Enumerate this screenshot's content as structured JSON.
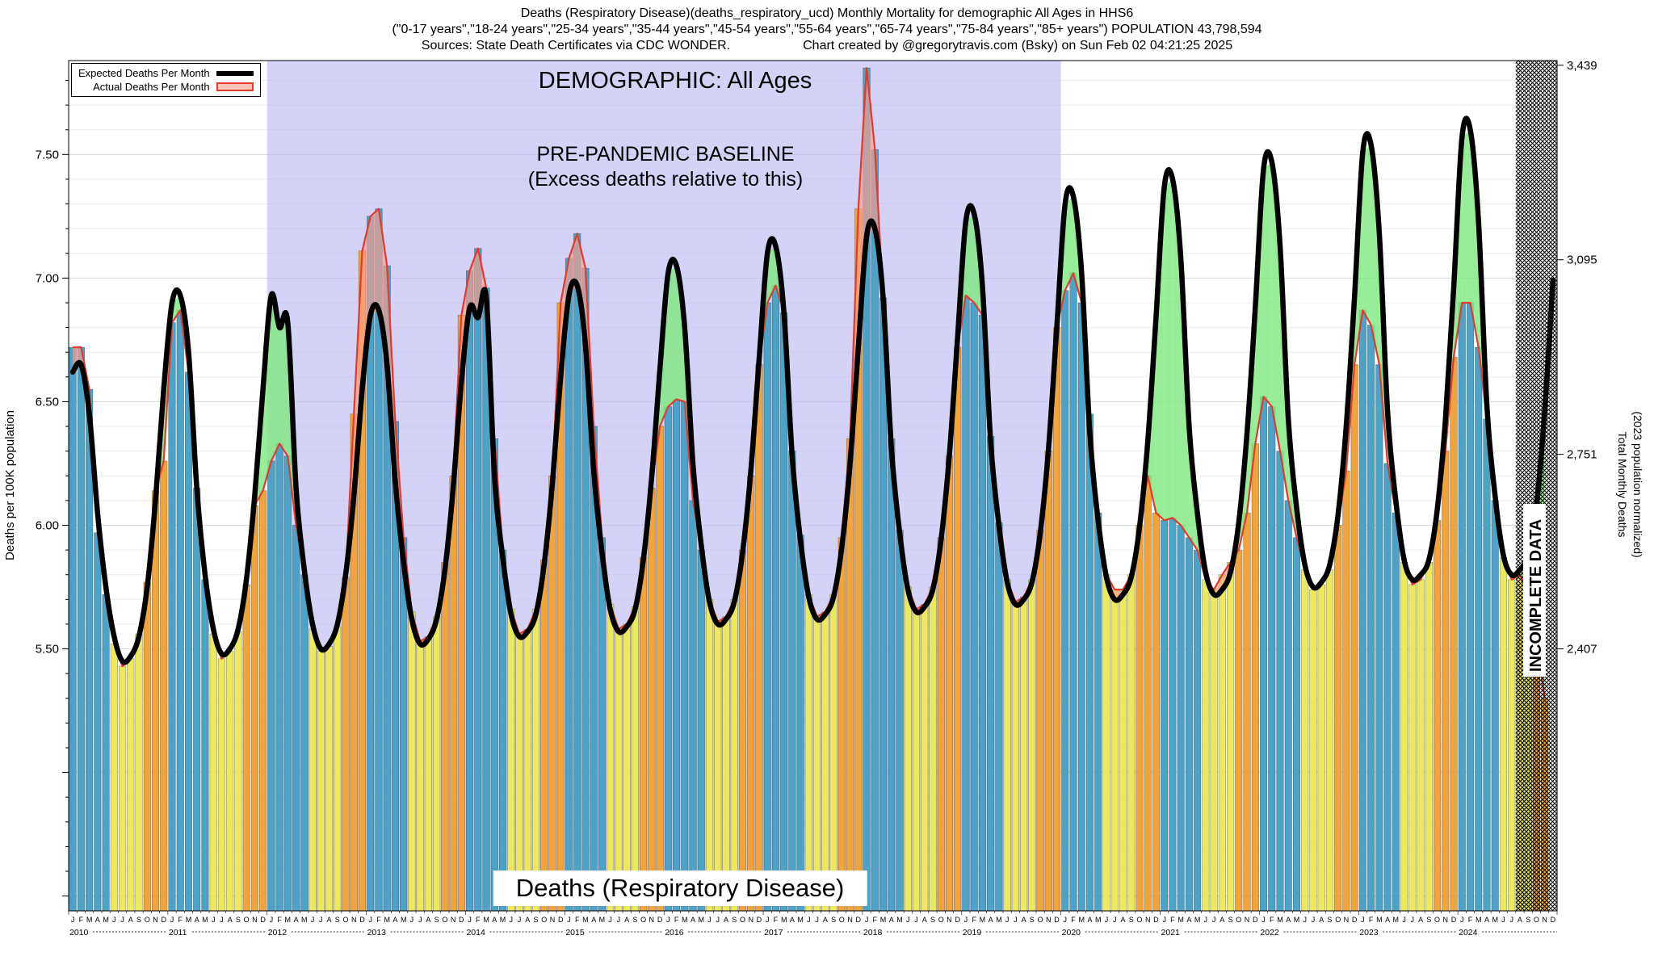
{
  "header": {
    "line1": "Deaths (Respiratory Disease)(deaths_respiratory_ucd) Monthly Mortality for demographic All Ages in HHS6",
    "line2": "(\"0-17 years\",\"18-24 years\",\"25-34 years\",\"35-44 years\",\"45-54 years\",\"55-64 years\",\"65-74 years\",\"75-84 years\",\"85+ years\") POPULATION 43,798,594",
    "line3_left": "Sources: State Death Certificates via CDC WONDER.",
    "line3_right": "Chart created by @gregorytravis.com (Bsky) on Sun Feb 02 04:21:25 2025"
  },
  "legend": {
    "expected": "Expected Deaths Per Month",
    "actual": "Actual Deaths Per Month"
  },
  "annotations": {
    "demographic": "DEMOGRAPHIC: All Ages",
    "baseline1": "PRE-PANDEMIC BASELINE",
    "baseline2": "(Excess deaths relative to this)",
    "incomplete": "INCOMPLETE DATA",
    "footer": "Deaths (Respiratory Disease)"
  },
  "axes": {
    "left_label": "Deaths per 100K population",
    "right_label1": "Total Monthly Deaths",
    "right_label2": "(2023 population normalized)",
    "left_ticks": [
      {
        "label": "7.50",
        "value": 7.5
      },
      {
        "label": "7.00",
        "value": 7.0
      },
      {
        "label": "6.50",
        "value": 6.5
      },
      {
        "label": "6.00",
        "value": 6.0
      },
      {
        "label": "5.50",
        "value": 5.5
      }
    ],
    "right_ticks": [
      {
        "label": "3,439",
        "value": 7.861
      },
      {
        "label": "3,095",
        "value": 7.074
      },
      {
        "label": "2,751",
        "value": 6.287
      },
      {
        "label": "2,407",
        "value": 5.5
      }
    ]
  },
  "chart_data": {
    "type": "bar+line",
    "title": "Deaths (Respiratory Disease) monthly mortality, demographic All Ages, HHS6",
    "xlabel": "",
    "ylabel": "Deaths per 100K population",
    "y2label": "Total Monthly Deaths (2023 population normalized)",
    "ylim": [
      4.44,
      7.88
    ],
    "month_letters": "JFMAMJJASOND",
    "years": [
      2010,
      2011,
      2012,
      2013,
      2014,
      2015,
      2016,
      2017,
      2018,
      2019,
      2020,
      2021,
      2022,
      2023,
      2024
    ],
    "baseline_region": {
      "start_index": 24,
      "end_index": 120,
      "color": "#b9b4f2",
      "label": "PRE-PANDEMIC BASELINE"
    },
    "incomplete_from_index": 175,
    "bar_month_colors": [
      "#4ba3c7",
      "#4ba3c7",
      "#4ba3c7",
      "#4ba3c7",
      "#4ba3c7",
      "#ece95f",
      "#ece95f",
      "#ece95f",
      "#ece95f",
      "#f0a43b",
      "#f0a43b",
      "#f0a43b"
    ],
    "deficit_fill": "#7de87d",
    "excess_fill": "#ff9d8c",
    "expected_color": "#000000",
    "actual_line_color": "#e23b2e",
    "series": [
      {
        "name": "Expected Deaths Per Month",
        "type": "line",
        "values": [
          6.62,
          6.65,
          6.45,
          6.05,
          5.75,
          5.55,
          5.45,
          5.47,
          5.55,
          5.75,
          6.1,
          6.55,
          6.9,
          6.93,
          6.7,
          6.15,
          5.8,
          5.58,
          5.48,
          5.5,
          5.58,
          5.78,
          6.12,
          6.55,
          6.93,
          6.8,
          6.82,
          6.15,
          5.82,
          5.6,
          5.5,
          5.52,
          5.6,
          5.8,
          6.12,
          6.55,
          6.85,
          6.87,
          6.65,
          6.18,
          5.85,
          5.62,
          5.52,
          5.54,
          5.62,
          5.82,
          6.15,
          6.58,
          6.88,
          6.84,
          6.92,
          6.2,
          5.87,
          5.64,
          5.55,
          5.57,
          5.64,
          5.84,
          6.17,
          6.6,
          6.93,
          6.97,
          6.73,
          6.22,
          5.89,
          5.66,
          5.57,
          5.59,
          5.66,
          5.86,
          6.19,
          6.63,
          7.02,
          7.05,
          6.8,
          6.25,
          5.92,
          5.69,
          5.6,
          5.62,
          5.69,
          5.89,
          6.22,
          6.67,
          7.1,
          7.13,
          6.86,
          6.28,
          5.94,
          5.71,
          5.62,
          5.64,
          5.71,
          5.91,
          6.25,
          6.72,
          7.17,
          7.2,
          6.92,
          6.31,
          5.97,
          5.74,
          5.65,
          5.67,
          5.74,
          5.94,
          6.28,
          6.76,
          7.23,
          7.26,
          6.97,
          6.34,
          6.0,
          5.77,
          5.68,
          5.7,
          5.77,
          5.97,
          6.31,
          6.8,
          7.3,
          7.33,
          7.02,
          6.37,
          6.02,
          5.79,
          5.7,
          5.72,
          5.79,
          5.99,
          6.34,
          6.84,
          7.37,
          7.4,
          7.08,
          6.4,
          6.05,
          5.81,
          5.72,
          5.74,
          5.81,
          6.01,
          6.37,
          6.88,
          7.44,
          7.47,
          7.13,
          6.43,
          6.07,
          5.84,
          5.75,
          5.77,
          5.84,
          6.04,
          6.4,
          6.92,
          7.51,
          7.54,
          7.18,
          6.46,
          6.1,
          5.86,
          5.78,
          5.8,
          5.86,
          6.06,
          6.43,
          6.96,
          7.57,
          7.6,
          7.23,
          6.49,
          6.12,
          5.88,
          5.8,
          5.82,
          5.88,
          6.08,
          6.46,
          6.99
        ]
      },
      {
        "name": "Actual Deaths Per Month",
        "type": "bar",
        "values": [
          6.72,
          6.72,
          6.55,
          5.97,
          5.72,
          5.52,
          5.43,
          5.46,
          5.56,
          5.77,
          6.14,
          6.26,
          6.82,
          6.87,
          6.62,
          6.15,
          5.78,
          5.56,
          5.46,
          5.49,
          5.57,
          5.76,
          6.08,
          6.14,
          6.26,
          6.33,
          6.28,
          6.0,
          5.8,
          5.58,
          5.49,
          5.51,
          5.59,
          5.79,
          6.45,
          7.11,
          7.25,
          7.28,
          7.05,
          6.42,
          5.95,
          5.65,
          5.53,
          5.55,
          5.63,
          5.85,
          6.2,
          6.85,
          7.03,
          7.12,
          6.96,
          6.35,
          5.9,
          5.66,
          5.56,
          5.58,
          5.66,
          5.86,
          6.2,
          6.9,
          7.08,
          7.18,
          7.04,
          6.4,
          5.95,
          5.68,
          5.58,
          5.6,
          5.67,
          5.87,
          6.15,
          6.4,
          6.48,
          6.51,
          6.5,
          6.1,
          5.9,
          5.7,
          5.61,
          5.63,
          5.7,
          5.9,
          6.2,
          6.65,
          6.9,
          6.97,
          6.86,
          6.3,
          5.96,
          5.72,
          5.63,
          5.65,
          5.72,
          5.95,
          6.35,
          7.28,
          7.85,
          7.52,
          6.92,
          6.35,
          5.98,
          5.75,
          5.66,
          5.68,
          5.75,
          5.95,
          6.28,
          6.72,
          6.93,
          6.9,
          6.85,
          6.36,
          6.01,
          5.78,
          5.69,
          5.71,
          5.78,
          5.98,
          6.3,
          6.8,
          6.95,
          7.02,
          6.9,
          6.45,
          6.05,
          5.8,
          5.74,
          5.74,
          5.8,
          6.0,
          6.2,
          6.05,
          6.02,
          6.03,
          6.0,
          5.95,
          5.9,
          5.78,
          5.74,
          5.8,
          5.85,
          5.9,
          6.05,
          6.33,
          6.52,
          6.48,
          6.3,
          6.1,
          5.95,
          5.82,
          5.74,
          5.76,
          5.82,
          6.0,
          6.22,
          6.65,
          6.87,
          6.81,
          6.65,
          6.25,
          6.05,
          5.85,
          5.76,
          5.78,
          5.85,
          6.02,
          6.3,
          6.68,
          6.9,
          6.9,
          6.72,
          6.43,
          6.1,
          5.87,
          5.78,
          5.8,
          5.72,
          5.55,
          5.3,
          null
        ]
      }
    ]
  }
}
